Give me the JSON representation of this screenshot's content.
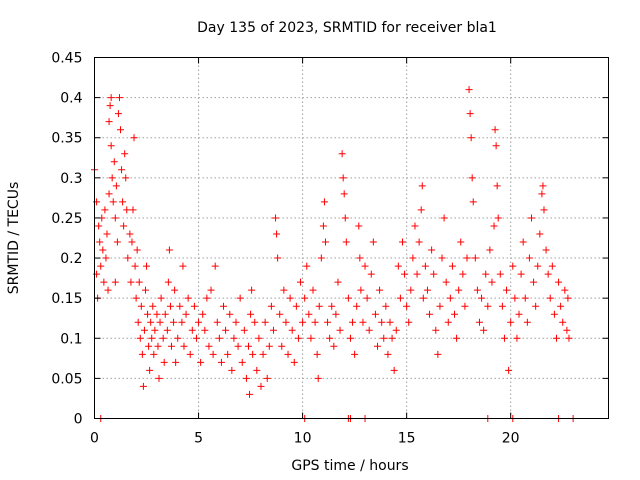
{
  "chart_data": {
    "type": "scatter",
    "title": "Day 135 of 2023, SRMTID for receiver bla1",
    "xlabel": "GPS time / hours",
    "ylabel": "SRMTID / TECUs",
    "xlim": [
      0,
      24.7
    ],
    "ylim": [
      0,
      0.45
    ],
    "xticks": [
      0,
      5,
      10,
      15,
      20
    ],
    "xtick_labels": [
      "0",
      "5",
      "10",
      "15",
      "20"
    ],
    "yticks": [
      0,
      0.05,
      0.1,
      0.15,
      0.2,
      0.25,
      0.3,
      0.35,
      0.4,
      0.45
    ],
    "ytick_labels": [
      "0",
      "0.05",
      "0.1",
      "0.15",
      "0.2",
      "0.25",
      "0.3",
      "0.35",
      "0.4",
      "0.45"
    ],
    "grid": true,
    "marker": "+",
    "colors": {
      "series": "#ff0000"
    },
    "series": [
      {
        "name": "SRMTID",
        "points": [
          [
            0.0,
            0.31
          ],
          [
            0.1,
            0.27
          ],
          [
            0.1,
            0.18
          ],
          [
            0.15,
            0.15
          ],
          [
            0.2,
            0.24
          ],
          [
            0.25,
            0.22
          ],
          [
            0.3,
            0.19
          ],
          [
            0.35,
            0.25
          ],
          [
            0.4,
            0.21
          ],
          [
            0.45,
            0.17
          ],
          [
            0.5,
            0.26
          ],
          [
            0.55,
            0.2
          ],
          [
            0.6,
            0.23
          ],
          [
            0.65,
            0.16
          ],
          [
            0.7,
            0.28
          ],
          [
            0.7,
            0.37
          ],
          [
            0.75,
            0.39
          ],
          [
            0.8,
            0.4
          ],
          [
            0.8,
            0.34
          ],
          [
            0.85,
            0.3
          ],
          [
            0.9,
            0.27
          ],
          [
            0.95,
            0.32
          ],
          [
            1.0,
            0.25
          ],
          [
            1.0,
            0.17
          ],
          [
            1.05,
            0.29
          ],
          [
            1.1,
            0.22
          ],
          [
            1.15,
            0.38
          ],
          [
            1.2,
            0.4
          ],
          [
            1.25,
            0.36
          ],
          [
            1.3,
            0.31
          ],
          [
            1.35,
            0.27
          ],
          [
            1.4,
            0.24
          ],
          [
            1.45,
            0.33
          ],
          [
            1.5,
            0.3
          ],
          [
            1.55,
            0.26
          ],
          [
            1.6,
            0.2
          ],
          [
            1.7,
            0.23
          ],
          [
            1.75,
            0.17
          ],
          [
            1.8,
            0.22
          ],
          [
            1.85,
            0.26
          ],
          [
            1.9,
            0.35
          ],
          [
            1.95,
            0.19
          ],
          [
            2.0,
            0.15
          ],
          [
            2.05,
            0.21
          ],
          [
            2.1,
            0.12
          ],
          [
            2.15,
            0.17
          ],
          [
            2.2,
            0.1
          ],
          [
            2.25,
            0.14
          ],
          [
            2.3,
            0.08
          ],
          [
            2.35,
            0.04
          ],
          [
            2.4,
            0.11
          ],
          [
            2.45,
            0.16
          ],
          [
            2.5,
            0.19
          ],
          [
            2.55,
            0.13
          ],
          [
            2.6,
            0.09
          ],
          [
            2.65,
            0.06
          ],
          [
            2.7,
            0.12
          ],
          [
            2.75,
            0.1
          ],
          [
            2.8,
            0.14
          ],
          [
            2.85,
            0.08
          ],
          [
            2.9,
            0.11
          ],
          [
            3.0,
            0.13
          ],
          [
            3.05,
            0.09
          ],
          [
            3.1,
            0.05
          ],
          [
            3.15,
            0.12
          ],
          [
            3.2,
            0.15
          ],
          [
            3.3,
            0.1
          ],
          [
            3.35,
            0.07
          ],
          [
            3.4,
            0.13
          ],
          [
            3.5,
            0.11
          ],
          [
            3.55,
            0.17
          ],
          [
            3.6,
            0.21
          ],
          [
            3.65,
            0.14
          ],
          [
            3.7,
            0.09
          ],
          [
            3.8,
            0.12
          ],
          [
            3.85,
            0.16
          ],
          [
            3.9,
            0.07
          ],
          [
            4.0,
            0.1
          ],
          [
            4.1,
            0.14
          ],
          [
            4.2,
            0.12
          ],
          [
            4.25,
            0.19
          ],
          [
            4.3,
            0.09
          ],
          [
            4.4,
            0.13
          ],
          [
            4.5,
            0.15
          ],
          [
            4.6,
            0.08
          ],
          [
            4.7,
            0.11
          ],
          [
            4.8,
            0.14
          ],
          [
            4.9,
            0.1
          ],
          [
            5.0,
            0.12
          ],
          [
            5.1,
            0.07
          ],
          [
            5.2,
            0.13
          ],
          [
            5.3,
            0.11
          ],
          [
            5.4,
            0.15
          ],
          [
            5.5,
            0.09
          ],
          [
            5.6,
            0.16
          ],
          [
            5.7,
            0.08
          ],
          [
            5.8,
            0.19
          ],
          [
            5.9,
            0.12
          ],
          [
            6.0,
            0.1
          ],
          [
            6.1,
            0.07
          ],
          [
            6.2,
            0.14
          ],
          [
            6.3,
            0.11
          ],
          [
            6.4,
            0.08
          ],
          [
            6.5,
            0.13
          ],
          [
            6.6,
            0.06
          ],
          [
            6.7,
            0.1
          ],
          [
            6.8,
            0.12
          ],
          [
            6.9,
            0.09
          ],
          [
            7.0,
            0.15
          ],
          [
            7.1,
            0.07
          ],
          [
            7.2,
            0.11
          ],
          [
            7.3,
            0.05
          ],
          [
            7.4,
            0.09
          ],
          [
            7.45,
            0.03
          ],
          [
            7.5,
            0.13
          ],
          [
            7.55,
            0.16
          ],
          [
            7.6,
            0.08
          ],
          [
            7.7,
            0.12
          ],
          [
            7.8,
            0.06
          ],
          [
            7.9,
            0.1
          ],
          [
            8.0,
            0.04
          ],
          [
            8.1,
            0.08
          ],
          [
            8.2,
            0.12
          ],
          [
            8.3,
            0.05
          ],
          [
            8.4,
            0.09
          ],
          [
            8.5,
            0.14
          ],
          [
            8.6,
            0.11
          ],
          [
            8.7,
            0.25
          ],
          [
            8.75,
            0.23
          ],
          [
            8.8,
            0.2
          ],
          [
            8.9,
            0.13
          ],
          [
            9.0,
            0.09
          ],
          [
            9.1,
            0.16
          ],
          [
            9.2,
            0.12
          ],
          [
            9.3,
            0.08
          ],
          [
            9.4,
            0.15
          ],
          [
            9.5,
            0.11
          ],
          [
            9.6,
            0.07
          ],
          [
            9.7,
            0.14
          ],
          [
            9.8,
            0.1
          ],
          [
            9.9,
            0.17
          ],
          [
            10.0,
            0.12
          ],
          [
            10.1,
            0.15
          ],
          [
            10.2,
            0.19
          ],
          [
            10.3,
            0.13
          ],
          [
            10.4,
            0.1
          ],
          [
            10.5,
            0.16
          ],
          [
            10.6,
            0.12
          ],
          [
            10.7,
            0.08
          ],
          [
            10.75,
            0.05
          ],
          [
            10.8,
            0.14
          ],
          [
            10.9,
            0.2
          ],
          [
            11.0,
            0.24
          ],
          [
            11.05,
            0.27
          ],
          [
            11.1,
            0.22
          ],
          [
            11.2,
            0.12
          ],
          [
            11.3,
            0.1
          ],
          [
            11.4,
            0.14
          ],
          [
            11.5,
            0.09
          ],
          [
            11.6,
            0.13
          ],
          [
            11.7,
            0.17
          ],
          [
            11.8,
            0.11
          ],
          [
            11.9,
            0.33
          ],
          [
            11.95,
            0.3
          ],
          [
            12.0,
            0.28
          ],
          [
            12.05,
            0.25
          ],
          [
            12.1,
            0.22
          ],
          [
            12.2,
            0.15
          ],
          [
            12.3,
            0.1
          ],
          [
            12.4,
            0.12
          ],
          [
            12.5,
            0.08
          ],
          [
            12.6,
            0.14
          ],
          [
            12.7,
            0.24
          ],
          [
            12.75,
            0.2
          ],
          [
            12.8,
            0.16
          ],
          [
            12.9,
            0.12
          ],
          [
            13.0,
            0.19
          ],
          [
            13.1,
            0.15
          ],
          [
            13.2,
            0.11
          ],
          [
            13.3,
            0.18
          ],
          [
            13.4,
            0.22
          ],
          [
            13.5,
            0.13
          ],
          [
            13.6,
            0.09
          ],
          [
            13.7,
            0.16
          ],
          [
            13.8,
            0.12
          ],
          [
            13.9,
            0.1
          ],
          [
            14.0,
            0.14
          ],
          [
            14.1,
            0.08
          ],
          [
            14.2,
            0.12
          ],
          [
            14.3,
            0.1
          ],
          [
            14.4,
            0.06
          ],
          [
            14.5,
            0.11
          ],
          [
            14.6,
            0.19
          ],
          [
            14.7,
            0.15
          ],
          [
            14.8,
            0.22
          ],
          [
            14.9,
            0.18
          ],
          [
            15.0,
            0.14
          ],
          [
            15.1,
            0.12
          ],
          [
            15.2,
            0.16
          ],
          [
            15.3,
            0.2
          ],
          [
            15.4,
            0.24
          ],
          [
            15.5,
            0.18
          ],
          [
            15.6,
            0.22
          ],
          [
            15.7,
            0.26
          ],
          [
            15.75,
            0.29
          ],
          [
            15.8,
            0.15
          ],
          [
            15.9,
            0.19
          ],
          [
            16.0,
            0.16
          ],
          [
            16.1,
            0.13
          ],
          [
            16.2,
            0.21
          ],
          [
            16.3,
            0.18
          ],
          [
            16.4,
            0.11
          ],
          [
            16.5,
            0.08
          ],
          [
            16.6,
            0.14
          ],
          [
            16.7,
            0.2
          ],
          [
            16.8,
            0.25
          ],
          [
            16.9,
            0.17
          ],
          [
            17.0,
            0.12
          ],
          [
            17.1,
            0.15
          ],
          [
            17.2,
            0.19
          ],
          [
            17.3,
            0.13
          ],
          [
            17.4,
            0.1
          ],
          [
            17.5,
            0.16
          ],
          [
            17.6,
            0.22
          ],
          [
            17.7,
            0.18
          ],
          [
            17.8,
            0.14
          ],
          [
            17.9,
            0.2
          ],
          [
            18.0,
            0.41
          ],
          [
            18.05,
            0.38
          ],
          [
            18.1,
            0.35
          ],
          [
            18.15,
            0.3
          ],
          [
            18.2,
            0.27
          ],
          [
            18.3,
            0.2
          ],
          [
            18.4,
            0.16
          ],
          [
            18.5,
            0.12
          ],
          [
            18.6,
            0.15
          ],
          [
            18.7,
            0.11
          ],
          [
            18.8,
            0.18
          ],
          [
            18.9,
            0.14
          ],
          [
            19.0,
            0.21
          ],
          [
            19.1,
            0.17
          ],
          [
            19.2,
            0.24
          ],
          [
            19.25,
            0.36
          ],
          [
            19.3,
            0.34
          ],
          [
            19.35,
            0.29
          ],
          [
            19.4,
            0.25
          ],
          [
            19.5,
            0.18
          ],
          [
            19.6,
            0.14
          ],
          [
            19.7,
            0.1
          ],
          [
            19.8,
            0.16
          ],
          [
            19.9,
            0.06
          ],
          [
            20.0,
            0.12
          ],
          [
            20.1,
            0.19
          ],
          [
            20.2,
            0.15
          ],
          [
            20.3,
            0.1
          ],
          [
            20.4,
            0.13
          ],
          [
            20.5,
            0.18
          ],
          [
            20.6,
            0.22
          ],
          [
            20.7,
            0.15
          ],
          [
            20.8,
            0.12
          ],
          [
            20.9,
            0.2
          ],
          [
            21.0,
            0.25
          ],
          [
            21.1,
            0.17
          ],
          [
            21.2,
            0.14
          ],
          [
            21.3,
            0.19
          ],
          [
            21.4,
            0.23
          ],
          [
            21.5,
            0.28
          ],
          [
            21.55,
            0.29
          ],
          [
            21.6,
            0.26
          ],
          [
            21.7,
            0.21
          ],
          [
            21.8,
            0.18
          ],
          [
            21.9,
            0.15
          ],
          [
            22.0,
            0.19
          ],
          [
            22.1,
            0.13
          ],
          [
            22.2,
            0.1
          ],
          [
            22.3,
            0.17
          ],
          [
            22.4,
            0.14
          ],
          [
            22.5,
            0.12
          ],
          [
            22.6,
            0.16
          ],
          [
            22.7,
            0.11
          ],
          [
            22.75,
            0.15
          ],
          [
            22.8,
            0.1
          ]
        ]
      }
    ],
    "zero_points_x": [
      0.3,
      10.1,
      12.2,
      12.3,
      13.0,
      18.9,
      20.1,
      22.3,
      23.0
    ]
  }
}
